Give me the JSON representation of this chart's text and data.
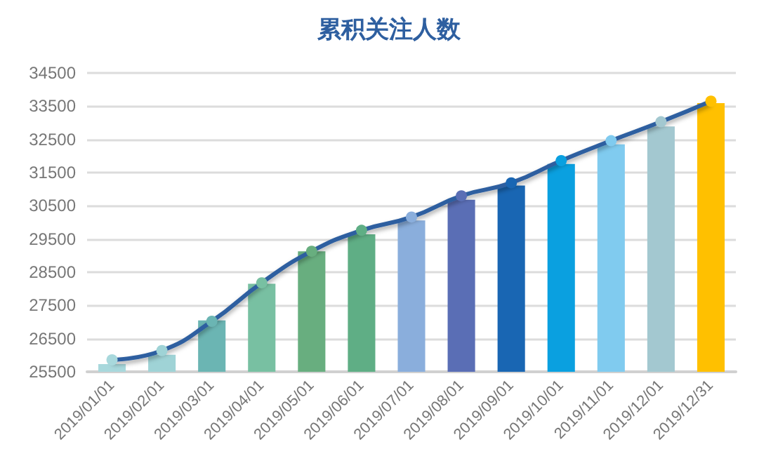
{
  "chart_data": {
    "type": "bar",
    "title": "累积关注人数",
    "categories": [
      "2019/01/01",
      "2019/02/01",
      "2019/03/01",
      "2019/04/01",
      "2019/05/01",
      "2019/06/01",
      "2019/07/01",
      "2019/08/01",
      "2019/09/01",
      "2019/10/01",
      "2019/11/01",
      "2019/12/01",
      "2019/12/31"
    ],
    "series": [
      {
        "values": [
          25730,
          26010,
          27050,
          28150,
          29130,
          29640,
          30060,
          30680,
          31110,
          31760,
          32350,
          32890,
          33590
        ],
        "colors": [
          "#a8d8dc",
          "#9fd3d6",
          "#6bb5b3",
          "#78c0a2",
          "#68ae7f",
          "#5fae85",
          "#8aaedc",
          "#5a6eb5",
          "#1966b3",
          "#0aa0e0",
          "#80cbef",
          "#a3c8d0",
          "#ffc000"
        ]
      },
      {
        "type": "line",
        "color": "#2e5fa0",
        "values": [
          25860,
          26140,
          27020,
          28180,
          29130,
          29760,
          30160,
          30800,
          31190,
          31860,
          32460,
          33030,
          33650
        ],
        "colors": [
          "#a8d8dc",
          "#9fd3d6",
          "#6bb5b3",
          "#78c0a2",
          "#68ae7f",
          "#5fae85",
          "#8aaedc",
          "#5a6eb5",
          "#1966b3",
          "#0aa0e0",
          "#80cbef",
          "#a3c8d0",
          "#ffc000"
        ]
      }
    ],
    "ylim": [
      25500,
      34500
    ],
    "yticks": [
      25500,
      26500,
      27500,
      28500,
      29500,
      30500,
      31500,
      32500,
      33500,
      34500
    ],
    "grid": "y",
    "marker": "circle",
    "line_style": "solid"
  }
}
